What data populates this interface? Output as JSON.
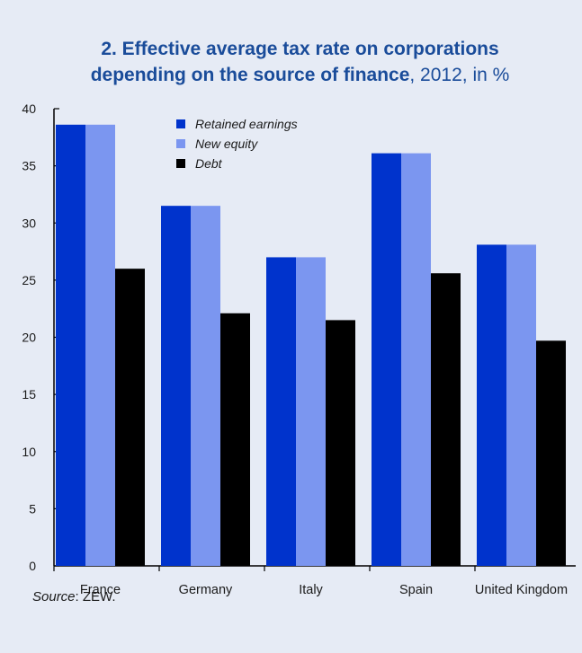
{
  "title": {
    "line1": "2. Effective average tax rate on corporations",
    "line2_bold": "depending on the source of finance",
    "line2_rest": ", 2012, in %"
  },
  "source": {
    "label": "Source",
    "text": ": ZEW."
  },
  "colors": {
    "retained": "#0033cc",
    "new_equity": "#7b96f0",
    "debt": "#000000",
    "background": "#e6ebf5",
    "title": "#1a4c9a"
  },
  "chart_data": {
    "type": "bar",
    "categories": [
      "France",
      "Germany",
      "Italy",
      "Spain",
      "United Kingdom"
    ],
    "series": [
      {
        "name": "Retained earnings",
        "values": [
          38.6,
          31.5,
          27.0,
          36.1,
          28.1
        ],
        "color": "#0033cc"
      },
      {
        "name": "New equity",
        "values": [
          38.6,
          31.5,
          27.0,
          36.1,
          28.1
        ],
        "color": "#7b96f0"
      },
      {
        "name": "Debt",
        "values": [
          26.0,
          22.1,
          21.5,
          25.6,
          19.7
        ],
        "color": "#000000"
      }
    ],
    "ylim": [
      0,
      40
    ],
    "yticks": [
      0,
      5,
      10,
      15,
      20,
      25,
      30,
      35,
      40
    ],
    "legend_position": "top-center",
    "grid": false
  }
}
